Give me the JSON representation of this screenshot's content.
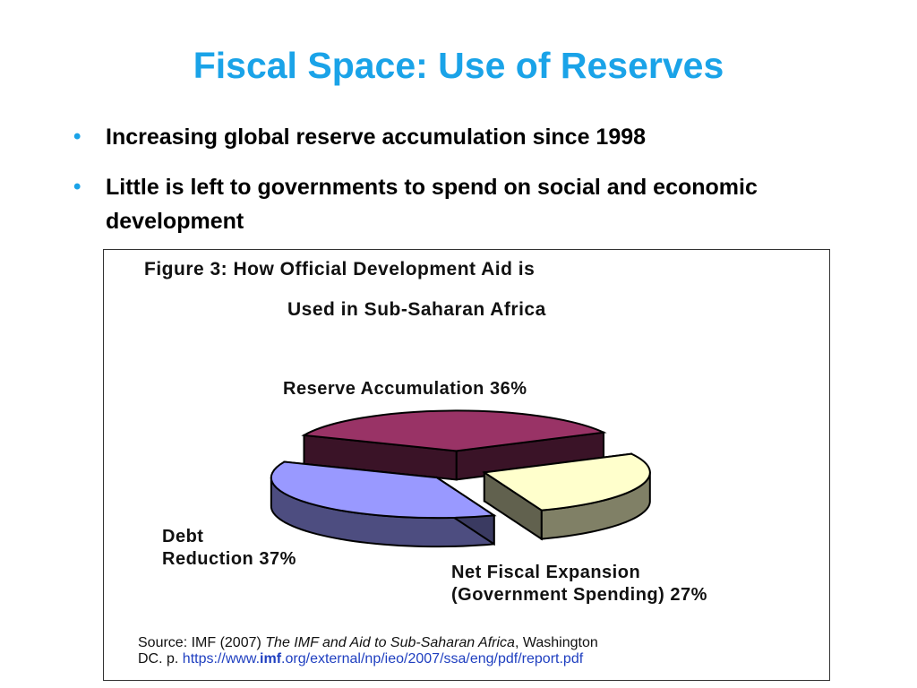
{
  "slide": {
    "title": "Fiscal Space: Use of Reserves",
    "bullets": [
      "Increasing global reserve accumulation since 1998",
      "Little is left to governments to spend on social and economic development"
    ]
  },
  "figure": {
    "title_line1": "Figure 3: How Official Development Aid is",
    "title_line2": "Used in Sub-Saharan Africa",
    "source_prefix": "Source: IMF (2007) ",
    "source_italic": "The IMF and Aid to Sub-Saharan Africa",
    "source_suffix": ", Washington",
    "source_line2": "DC. p. ",
    "link_before": "https://www.",
    "link_bold": "imf",
    "link_after": ".org/external/np/ieo/2007/ssa/eng/pdf/report.pdf"
  },
  "chart_data": {
    "type": "pie",
    "title": "Figure 3: How Official Development Aid is Used in Sub-Saharan Africa",
    "slices": [
      {
        "label": "Reserve Accumulation 36%",
        "value": 36,
        "color": "#993366"
      },
      {
        "label": "Net Fiscal Expansion (Government Spending) 27%",
        "value": 27,
        "color": "#ffffcc"
      },
      {
        "label": "Debt Reduction 37%",
        "value": 37,
        "color": "#9999ff"
      }
    ],
    "label_lines": {
      "reserve": [
        "Reserve Accumulation 36%"
      ],
      "fiscal": [
        "Net Fiscal Expansion",
        "(Government Spending) 27%"
      ],
      "debt": [
        "Debt",
        "Reduction 37%"
      ]
    }
  }
}
